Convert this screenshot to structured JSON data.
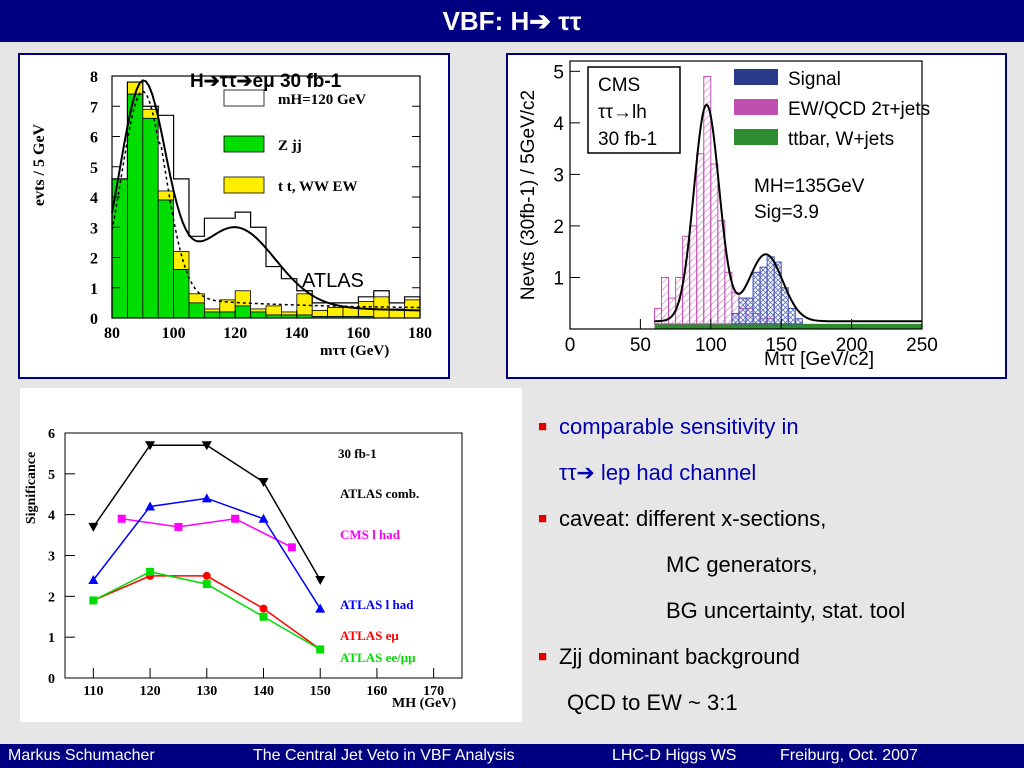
{
  "title": "VBF: H➔ ττ",
  "footer": {
    "author": "Markus  Schumacher",
    "talk": "The Central Jet Veto in VBF Analysis",
    "workshop": "LHC-D Higgs WS",
    "place_date": "Freiburg, Oct. 2007"
  },
  "bullets": {
    "b1_line1": "comparable sensitivity in",
    "b1_line2": "ττ➔ lep had channel",
    "b2_line1": "caveat: different x-sections,",
    "b2_line2": "MC generators,",
    "b2_line3": "BG uncertainty, stat. tool",
    "b3_line1": "Zjj dominant background",
    "b3_line2": "QCD to EW ~ 3:1"
  },
  "colors": {
    "header_bg": "#000080",
    "bullet_mark": "#e00000",
    "zjj_green": "#00dd00",
    "ttbar_yellow": "#ffee00",
    "cms_signal": "#2a3a8a",
    "cms_ewqcd": "#c050b0",
    "cms_ttbar": "#2e8b2e"
  },
  "chart_data": [
    {
      "type": "histogram",
      "title": "H➔ττ➔eμ 30 fb-1",
      "ylabel": "evts / 5 GeV",
      "xlabel": "mττ (GeV)",
      "xlim": [
        80,
        180
      ],
      "ylim": [
        0,
        8
      ],
      "xticks": [
        80,
        100,
        120,
        140,
        160,
        180
      ],
      "yticks": [
        0,
        1,
        2,
        3,
        4,
        5,
        6,
        7,
        8
      ],
      "annotation": "ATLAS",
      "legend": [
        "mH=120 GeV",
        "Z jj",
        "t t, WW EW"
      ],
      "bin_edges": [
        80,
        85,
        90,
        95,
        100,
        105,
        110,
        115,
        120,
        125,
        130,
        135,
        140,
        145,
        150,
        155,
        160,
        165,
        170,
        175,
        180
      ],
      "series": [
        {
          "name": "Z jj",
          "values": [
            4.6,
            7.4,
            6.6,
            3.9,
            1.6,
            0.5,
            0.2,
            0.2,
            0.4,
            0.2,
            0.1,
            0.1,
            0.1,
            0.05,
            0.05,
            0.05,
            0.05,
            0.0,
            0.0,
            0.0
          ]
        },
        {
          "name": "t t, WW EW",
          "values": [
            0.0,
            0.4,
            0.3,
            0.3,
            0.6,
            0.3,
            0.1,
            0.4,
            0.5,
            0.1,
            0.3,
            0.1,
            0.7,
            0.2,
            0.3,
            0.3,
            0.5,
            0.7,
            0.3,
            0.6
          ]
        },
        {
          "name": "mH=120 GeV",
          "values": [
            4.6,
            7.8,
            7.0,
            6.7,
            4.6,
            2.7,
            3.3,
            3.3,
            3.5,
            3.0,
            1.7,
            1.3,
            0.9,
            0.5,
            0.5,
            0.5,
            0.7,
            0.9,
            0.5,
            0.7
          ]
        }
      ]
    },
    {
      "type": "histogram",
      "ylabel": "Nevts (30fb-1) / 5GeV/c2",
      "xlabel": "Mττ [GeV/c2]",
      "xlim": [
        0,
        250
      ],
      "ylim": [
        0,
        5.2
      ],
      "xticks": [
        0,
        50,
        100,
        150,
        200,
        250
      ],
      "yticks": [
        1,
        2,
        3,
        4,
        5
      ],
      "info_box": [
        "CMS",
        "ττ→lh",
        "30 fb-1"
      ],
      "annotations": [
        "MH=135GeV",
        "Sig=3.9"
      ],
      "legend": [
        "Signal",
        "EW/QCD 2τ+jets",
        "ttbar, W+jets"
      ],
      "bin_edges": [
        60,
        65,
        70,
        75,
        80,
        85,
        90,
        95,
        100,
        105,
        110,
        115,
        120,
        125,
        130,
        135,
        140,
        145,
        150,
        155,
        160,
        165,
        170
      ],
      "series": [
        {
          "name": "ttbar, W+jets",
          "values": [
            0.1,
            0.1,
            0.1,
            0.1,
            0.1,
            0.1,
            0.1,
            0.1,
            0.1,
            0.1,
            0.1,
            0.1,
            0.1,
            0.1,
            0.1,
            0.1,
            0.1,
            0.1,
            0.1,
            0.1,
            0.1,
            0.1
          ]
        },
        {
          "name": "EW/QCD 2τ+jets",
          "values": [
            0.3,
            0.9,
            0.5,
            0.9,
            1.7,
            1.9,
            3.3,
            4.8,
            3.1,
            2.0,
            1.0,
            0.6,
            0.3,
            0.3,
            0.2,
            0.1,
            0.1,
            0.0,
            0.0,
            0.0,
            0.0,
            0.0
          ]
        },
        {
          "name": "Signal",
          "values": [
            0.0,
            0.0,
            0.0,
            0.0,
            0.0,
            0.0,
            0.0,
            0.0,
            0.0,
            0.0,
            0.0,
            0.2,
            0.5,
            0.5,
            1.0,
            1.1,
            1.3,
            1.2,
            0.7,
            0.3,
            0.1,
            0.0
          ]
        }
      ]
    },
    {
      "type": "line",
      "ylabel": "Significance",
      "xlabel": "MH (GeV)",
      "xlim": [
        105,
        175
      ],
      "ylim": [
        0,
        6
      ],
      "xticks": [
        110,
        120,
        130,
        140,
        150,
        160,
        170
      ],
      "yticks": [
        0,
        1,
        2,
        3,
        4,
        5,
        6
      ],
      "annotation": "30 fb-1",
      "series": [
        {
          "name": "ATLAS comb.",
          "color": "#000000",
          "marker": "triangle-down",
          "x": [
            110,
            120,
            130,
            140,
            150
          ],
          "y": [
            3.7,
            5.7,
            5.7,
            4.8,
            2.4
          ]
        },
        {
          "name": "CMS  l had",
          "color": "#ff00ff",
          "marker": "square",
          "x": [
            115,
            125,
            135,
            145
          ],
          "y": [
            3.9,
            3.7,
            3.9,
            3.2
          ]
        },
        {
          "name": "ATLAS l had",
          "color": "#0000ff",
          "marker": "triangle-up",
          "x": [
            110,
            120,
            130,
            140,
            150
          ],
          "y": [
            2.4,
            4.2,
            4.4,
            3.9,
            1.7
          ]
        },
        {
          "name": "ATLAS eμ",
          "color": "#ff0000",
          "marker": "circle",
          "x": [
            110,
            120,
            130,
            140,
            150
          ],
          "y": [
            1.9,
            2.5,
            2.5,
            1.7,
            0.7
          ]
        },
        {
          "name": "ATLAS ee/μμ",
          "color": "#00dd00",
          "marker": "square",
          "x": [
            110,
            120,
            130,
            140,
            150
          ],
          "y": [
            1.9,
            2.6,
            2.3,
            1.5,
            0.7
          ]
        }
      ]
    }
  ]
}
